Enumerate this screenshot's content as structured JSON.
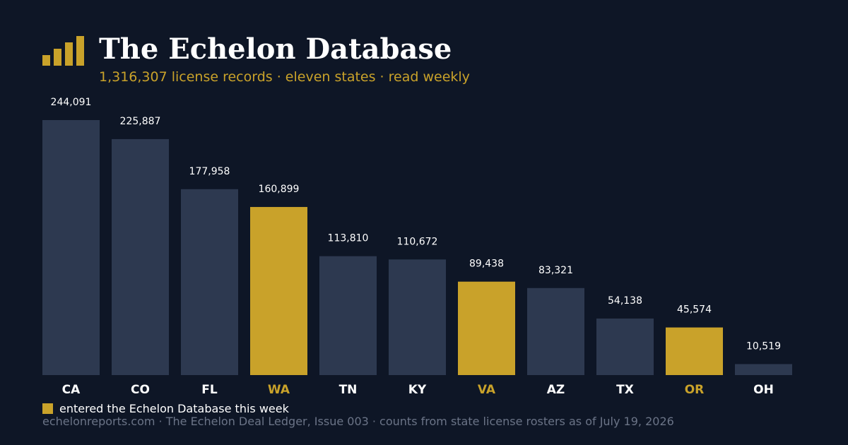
{
  "header": {
    "title": "The Echelon Database",
    "subtitle": "1,316,307 license records · eleven states · read weekly"
  },
  "colors": {
    "background": "#0e1626",
    "bar_default": "#2d3950",
    "bar_highlight": "#c9a22a",
    "label_default": "#ffffff",
    "label_highlight": "#c9a22a"
  },
  "logo_icon": "bar-chart-logo-icon",
  "legend": {
    "label": "entered the Echelon Database this week"
  },
  "footer": "echelonreports.com · The Echelon Deal Ledger, Issue 003 · counts from state license rosters as of July 19, 2026",
  "chart_data": {
    "type": "bar",
    "categories": [
      "CA",
      "CO",
      "FL",
      "WA",
      "TN",
      "KY",
      "VA",
      "AZ",
      "TX",
      "OR",
      "OH"
    ],
    "values": [
      244091,
      225887,
      177958,
      160899,
      113810,
      110672,
      89438,
      83321,
      54138,
      45574,
      10519
    ],
    "value_labels": [
      "244,091",
      "225,887",
      "177,958",
      "160,899",
      "113,810",
      "110,672",
      "89,438",
      "83,321",
      "54,138",
      "45,574",
      "10,519"
    ],
    "highlighted": [
      "WA",
      "VA",
      "OR"
    ],
    "title": "",
    "xlabel": "",
    "ylabel": "",
    "ylim": [
      0,
      244091
    ],
    "grid": false,
    "legend_position": "bottom-left"
  }
}
